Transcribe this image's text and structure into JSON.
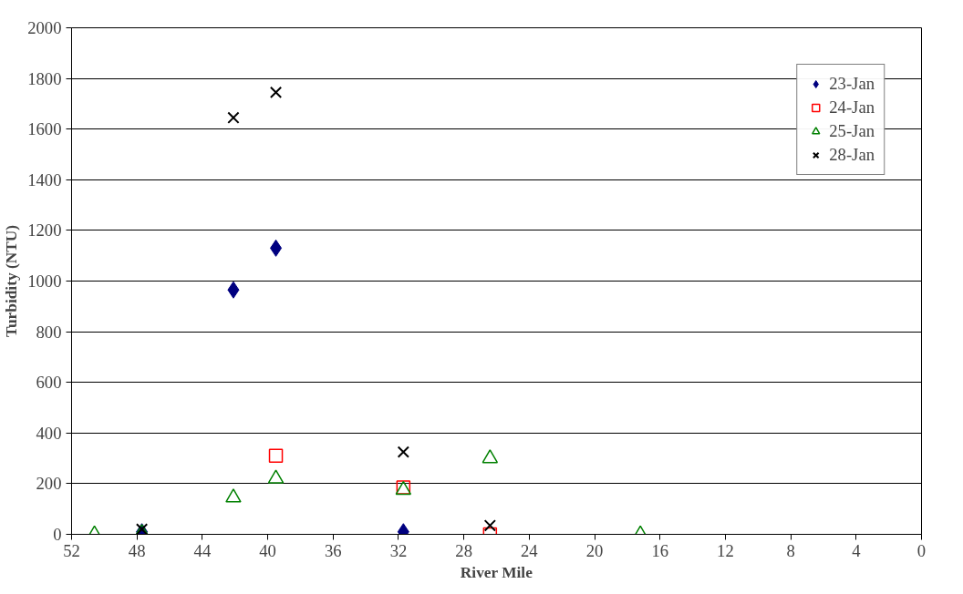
{
  "chart_data": {
    "type": "scatter",
    "xlabel": "River Mile",
    "ylabel": "Turbidity (NTU)",
    "xlim": [
      52,
      0
    ],
    "xticks": [
      52,
      48,
      44,
      40,
      36,
      32,
      28,
      24,
      20,
      16,
      12,
      8,
      4,
      0
    ],
    "ylim": [
      0,
      2000
    ],
    "yticks": [
      0,
      200,
      400,
      600,
      800,
      1000,
      1200,
      1400,
      1600,
      1800,
      2000
    ],
    "grid": "y",
    "legend": "top right",
    "series": [
      {
        "name": "23-Jan",
        "color": "#000080",
        "marker": "diamond",
        "x": [
          47.7,
          42.1,
          39.5,
          31.7
        ],
        "values": [
          10,
          965,
          1130,
          10
        ]
      },
      {
        "name": "24-Jan",
        "color": "#ff0000",
        "marker": "square",
        "x": [
          39.5,
          31.7,
          26.4
        ],
        "values": [
          310,
          185,
          0
        ]
      },
      {
        "name": "25-Jan",
        "color": "#008000",
        "marker": "triangle",
        "x": [
          50.6,
          47.7,
          42.1,
          39.5,
          31.7,
          26.4,
          17.2
        ],
        "values": [
          0,
          5,
          145,
          220,
          175,
          300,
          0
        ]
      },
      {
        "name": "28-Jan",
        "color": "#000000",
        "marker": "cross",
        "x": [
          47.7,
          42.1,
          39.5,
          31.7,
          26.4
        ],
        "values": [
          20,
          1645,
          1745,
          325,
          35
        ]
      }
    ]
  }
}
